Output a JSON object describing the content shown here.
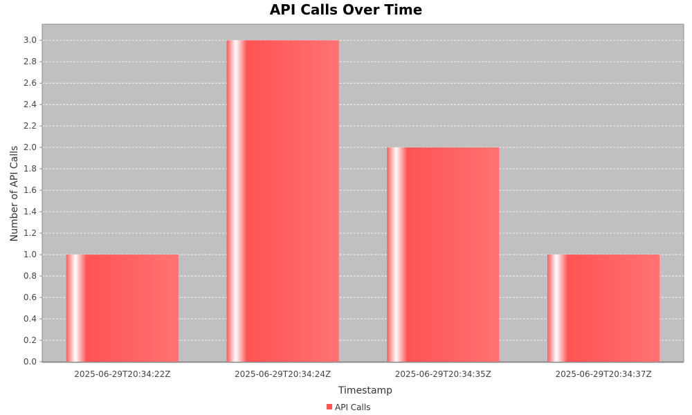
{
  "chart_data": {
    "type": "bar",
    "title": "API Calls Over Time",
    "xlabel": "Timestamp",
    "ylabel": "Number of API Calls",
    "categories": [
      "2025-06-29T20:34:22Z",
      "2025-06-29T20:34:24Z",
      "2025-06-29T20:34:35Z",
      "2025-06-29T20:34:37Z"
    ],
    "series": [
      {
        "name": "API Calls",
        "values": [
          1,
          3,
          2,
          1
        ]
      }
    ],
    "ylim": [
      0,
      3.15
    ],
    "yticks": [
      "0.0",
      "0.2",
      "0.4",
      "0.6",
      "0.8",
      "1.0",
      "1.2",
      "1.4",
      "1.6",
      "1.8",
      "2.0",
      "2.2",
      "2.4",
      "2.6",
      "2.8",
      "3.0"
    ],
    "grid": true,
    "legend_position": "bottom",
    "colors": {
      "bar": "#ff5555",
      "plot_background": "#c0c0c0",
      "gridline": "#ffffff"
    }
  }
}
